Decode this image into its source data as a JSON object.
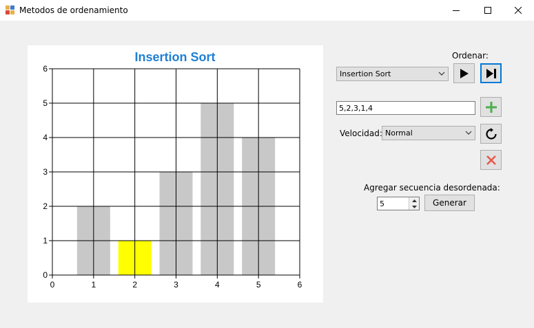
{
  "window": {
    "title": "Metodos de ordenamiento",
    "icons": {
      "app": "app-icon",
      "minimize": "minimize-icon",
      "maximize": "maximize-icon",
      "close": "close-icon"
    }
  },
  "chart_data": {
    "type": "bar",
    "title": "Insertion Sort",
    "title_color": "#1e7fd4",
    "x": [
      1,
      2,
      3,
      4,
      5
    ],
    "values": [
      2,
      1,
      3,
      5,
      4
    ],
    "highlight_index": 1,
    "bar_color": "#c8c8c8",
    "highlight_color": "#ffff00",
    "xlim": [
      0,
      6
    ],
    "ylim": [
      0,
      6
    ],
    "xticks": [
      "0",
      "1",
      "2",
      "3",
      "4",
      "5",
      "6"
    ],
    "yticks": [
      "0",
      "1",
      "2",
      "3",
      "4",
      "5",
      "6"
    ],
    "grid": true
  },
  "controls": {
    "ordenar_label": "Ordenar:",
    "algorithm_selected": "Insertion Sort",
    "sequence_value": "5,2,3,1,4",
    "velocidad_label": "Velocidad:",
    "speed_selected": "Normal",
    "random_label": "Agregar secuencia desordenada:",
    "random_count": "5",
    "generate_label": "Generar",
    "icons": {
      "play": "play-icon",
      "step": "step-forward-icon",
      "add": "plus-icon",
      "reset": "reset-icon",
      "clear": "clear-icon",
      "dropdown": "chevron-down-icon"
    },
    "colors": {
      "add": "#4caf50",
      "clear": "#e8584c",
      "focus": "#0078d7"
    }
  }
}
